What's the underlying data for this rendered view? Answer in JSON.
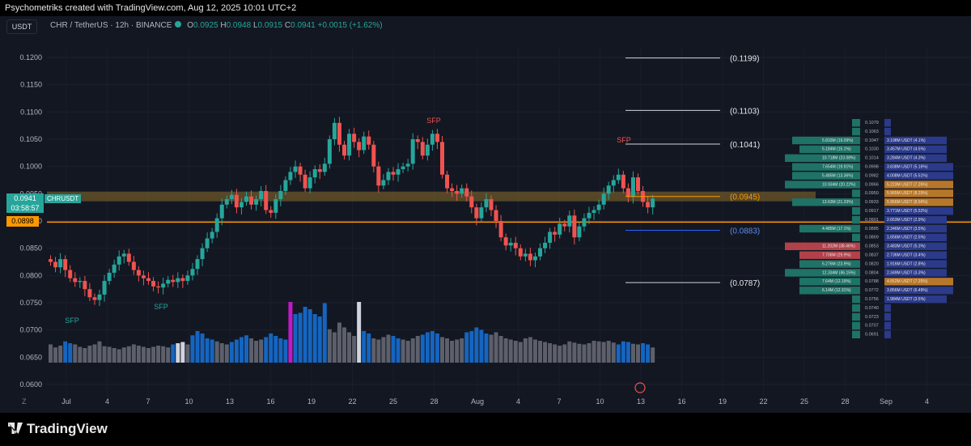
{
  "header": {
    "caption": "Psychometriks created with TradingView.com, Aug 12, 2025 10:01 UTC+2"
  },
  "toolbar": {
    "currency": "USDT"
  },
  "legend": {
    "symbol": "CHR / TetherUS · 12h · BINANCE",
    "o_label": "O",
    "o_value": "0.0925",
    "h_label": "H",
    "h_value": "0.0948",
    "l_label": "L",
    "l_value": "0.0915",
    "c_label": "C",
    "c_value": "0.0941",
    "change": "+0.0015 (+1.62%)"
  },
  "price_tags": {
    "current": "0.0941",
    "symbol": "CHRUSDT",
    "countdown": "03:58:57",
    "line_price": "0.0898"
  },
  "branding": {
    "logo_text": "TradingView"
  },
  "timezone_mark": "Z",
  "colors": {
    "up": "#26a69a",
    "down": "#ef5350",
    "background": "#131722",
    "level_line": "#ff9800",
    "zone_fill": "#8a6d2b",
    "volume_blue": "#1565c0",
    "volume_gray": "#5d606b",
    "volume_magenta": "#c218c9",
    "volume_white": "#d1d4dc"
  },
  "chart_data": {
    "type": "candlestick",
    "ylim": [
      0.06,
      0.125
    ],
    "y_ticks": [
      "0.1200",
      "0.1150",
      "0.1100",
      "0.1050",
      "0.1000",
      "0.0950",
      "0.0900",
      "0.0850",
      "0.0800",
      "0.0750",
      "0.0700",
      "0.0650",
      "0.0600"
    ],
    "x_ticks": [
      "Jul",
      "4",
      "7",
      "10",
      "13",
      "16",
      "19",
      "22",
      "25",
      "28",
      "Aug",
      "4",
      "7",
      "10",
      "13",
      "16",
      "19",
      "22",
      "25",
      "28",
      "Sep",
      "4"
    ],
    "closes": [
      0.0825,
      0.0815,
      0.083,
      0.081,
      0.0795,
      0.0788,
      0.079,
      0.0775,
      0.076,
      0.0755,
      0.0765,
      0.079,
      0.0805,
      0.082,
      0.0835,
      0.084,
      0.0825,
      0.081,
      0.08,
      0.0795,
      0.079,
      0.078,
      0.0778,
      0.0785,
      0.0792,
      0.0788,
      0.0795,
      0.079,
      0.08,
      0.0812,
      0.083,
      0.085,
      0.0868,
      0.088,
      0.0905,
      0.093,
      0.094,
      0.0948,
      0.0925,
      0.0935,
      0.0945,
      0.093,
      0.094,
      0.0955,
      0.092,
      0.0915,
      0.094,
      0.0955,
      0.0975,
      0.099,
      0.1,
      0.0985,
      0.096,
      0.098,
      0.0995,
      0.099,
      0.1005,
      0.105,
      0.108,
      0.104,
      0.102,
      0.106,
      0.1045,
      0.103,
      0.1055,
      0.104,
      0.1,
      0.0965,
      0.0975,
      0.099,
      0.0985,
      0.0995,
      0.1,
      0.1005,
      0.105,
      0.1045,
      0.102,
      0.104,
      0.106,
      0.1045,
      0.0985,
      0.096,
      0.0955,
      0.095,
      0.096,
      0.0945,
      0.0925,
      0.0905,
      0.0925,
      0.094,
      0.092,
      0.09,
      0.087,
      0.0855,
      0.086,
      0.085,
      0.0835,
      0.084,
      0.0828,
      0.0835,
      0.085,
      0.086,
      0.088,
      0.0875,
      0.0895,
      0.089,
      0.091,
      0.087,
      0.089,
      0.0905,
      0.0915,
      0.092,
      0.093,
      0.095,
      0.0965,
      0.0975,
      0.0985,
      0.096,
      0.0945,
      0.098,
      0.0955,
      0.0935,
      0.0925,
      0.0941
    ],
    "volumes": [
      30,
      25,
      28,
      35,
      32,
      30,
      26,
      24,
      28,
      30,
      35,
      27,
      26,
      24,
      22,
      25,
      27,
      30,
      28,
      26,
      24,
      26,
      28,
      27,
      25,
      30,
      32,
      34,
      30,
      45,
      52,
      48,
      40,
      38,
      35,
      32,
      30,
      34,
      38,
      42,
      45,
      40,
      36,
      38,
      42,
      48,
      44,
      40,
      38,
      100,
      80,
      82,
      92,
      88,
      80,
      76,
      98,
      55,
      50,
      66,
      58,
      50,
      44,
      100,
      52,
      48,
      40,
      38,
      42,
      46,
      44,
      40,
      38,
      36,
      40,
      44,
      46,
      50,
      52,
      48,
      42,
      40,
      36,
      38,
      40,
      50,
      52,
      58,
      54,
      48,
      46,
      50,
      44,
      40,
      38,
      36,
      34,
      40,
      42,
      38,
      36,
      34,
      32,
      30,
      28,
      30,
      35,
      33,
      31,
      30,
      32,
      36,
      35,
      34,
      36,
      33,
      30,
      35,
      34,
      31,
      30,
      32,
      30,
      25
    ],
    "volume_colors": [
      "g",
      "g",
      "g",
      "b",
      "b",
      "g",
      "g",
      "g",
      "g",
      "g",
      "g",
      "g",
      "g",
      "g",
      "g",
      "g",
      "g",
      "g",
      "g",
      "g",
      "g",
      "g",
      "g",
      "g",
      "g",
      "b",
      "w",
      "w",
      "g",
      "b",
      "b",
      "b",
      "b",
      "b",
      "g",
      "g",
      "g",
      "b",
      "b",
      "b",
      "b",
      "g",
      "g",
      "g",
      "b",
      "b",
      "b",
      "b",
      "b",
      "m",
      "b",
      "b",
      "b",
      "b",
      "b",
      "b",
      "b",
      "g",
      "g",
      "g",
      "g",
      "g",
      "g",
      "w",
      "b",
      "b",
      "g",
      "g",
      "g",
      "g",
      "b",
      "b",
      "g",
      "g",
      "g",
      "g",
      "b",
      "b",
      "b",
      "b",
      "g",
      "g",
      "g",
      "g",
      "g",
      "b",
      "b",
      "b",
      "b",
      "b",
      "g",
      "g",
      "g",
      "g",
      "g",
      "g",
      "g",
      "g",
      "g",
      "g",
      "g",
      "g",
      "g",
      "g",
      "g",
      "g",
      "g",
      "g",
      "g",
      "g",
      "g",
      "g",
      "g",
      "g",
      "g",
      "g",
      "b",
      "b",
      "b",
      "g",
      "g",
      "b",
      "b",
      "g"
    ],
    "levels": [
      {
        "label": "(0.1199)",
        "value": 0.1199
      },
      {
        "label": "(0.1103)",
        "value": 0.1103
      },
      {
        "label": "(0.1041)",
        "value": 0.1041
      },
      {
        "label": "(0.0945)",
        "value": 0.0945
      },
      {
        "label": "(0.0883)",
        "value": 0.0883
      },
      {
        "label": "(0.0787)",
        "value": 0.0787
      }
    ],
    "annotations": [
      "SFP",
      "SFP",
      "SFP",
      "SFP"
    ],
    "volume_profile": [
      {
        "price": "0.1079",
        "left": "",
        "right": ""
      },
      {
        "price": "0.1063",
        "left": "",
        "right": ""
      },
      {
        "price": "0.1047",
        "left": "5.833M (19.09%)",
        "right": "3.198M USDT (4.1%)"
      },
      {
        "price": "0.1030",
        "left": "5.184M (15.1%)",
        "right": "3.457M USDT (4.5%)"
      },
      {
        "price": "0.1014",
        "left": "10.718M (23.08%)",
        "right": "3.284M USDT (4.3%)"
      },
      {
        "price": "0.0998",
        "left": "7.654M (19.91%)",
        "right": "3.838M USDT (5.16%)"
      },
      {
        "price": "0.0982",
        "left": "5.485M (13.36%)",
        "right": "4.008M USDT (5.51%)"
      },
      {
        "price": "0.0966",
        "left": "10.934M (20.22%)",
        "right": "5.223M USDT (7.26%)"
      },
      {
        "price": "0.0950",
        "left": "",
        "right": "5.965M USDT (8.29%)"
      },
      {
        "price": "0.0933",
        "left": "13.63M (21.33%)",
        "right": "5.956M USDT (8.56%)"
      },
      {
        "price": "0.0917",
        "left": "",
        "right": "3.771M USDT (5.52%)"
      },
      {
        "price": "0.0901",
        "left": "",
        "right": "2.653M USDT (2.9%)"
      },
      {
        "price": "0.0885",
        "left": "4.485M (17.1%)",
        "right": "2.346M USDT (3.5%)"
      },
      {
        "price": "0.0869",
        "left": "",
        "right": "1.656M USDT (2.5%)"
      },
      {
        "price": "0.0853",
        "left": "11.202M (38.46%)",
        "right": "3.483M USDT (5.3%)"
      },
      {
        "price": "0.0837",
        "left": "7.706M (29.9%)",
        "right": "2.736M USDT (3.4%)"
      },
      {
        "price": "0.0820",
        "left": "5.276M (23.9%)",
        "right": "1.916M USDT (2.8%)"
      },
      {
        "price": "0.0804",
        "left": "12.334M (46.15%)",
        "right": "2.349M USDT (3.3%)"
      },
      {
        "price": "0.0788",
        "left": "7.64M (12.19%)",
        "right": "4.552M USDT (7.25%)"
      },
      {
        "price": "0.0772",
        "left": "6.14M (12.31%)",
        "right": "3.856M USDT (6.49%)"
      },
      {
        "price": "0.0756",
        "left": "",
        "right": "1.984M USDT (3.5%)"
      },
      {
        "price": "0.0740",
        "left": "",
        "right": ""
      },
      {
        "price": "0.0723",
        "left": "",
        "right": ""
      },
      {
        "price": "0.0707",
        "left": "",
        "right": ""
      },
      {
        "price": "0.0691",
        "left": "",
        "right": ""
      }
    ]
  }
}
